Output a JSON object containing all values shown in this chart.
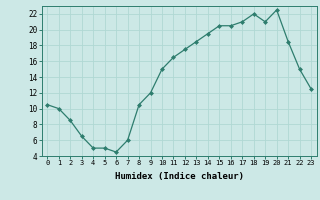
{
  "x": [
    0,
    1,
    2,
    3,
    4,
    5,
    6,
    7,
    8,
    9,
    10,
    11,
    12,
    13,
    14,
    15,
    16,
    17,
    18,
    19,
    20,
    21,
    22,
    23
  ],
  "y": [
    10.5,
    10.0,
    8.5,
    6.5,
    5.0,
    5.0,
    4.5,
    6.0,
    10.5,
    12.0,
    15.0,
    16.5,
    17.5,
    18.5,
    19.5,
    20.5,
    20.5,
    21.0,
    22.0,
    21.0,
    22.5,
    18.5,
    15.0,
    12.5
  ],
  "xlabel": "Humidex (Indice chaleur)",
  "ylim": [
    4,
    23
  ],
  "xlim": [
    -0.5,
    23.5
  ],
  "yticks": [
    4,
    6,
    8,
    10,
    12,
    14,
    16,
    18,
    20,
    22
  ],
  "xticks": [
    0,
    1,
    2,
    3,
    4,
    5,
    6,
    7,
    8,
    9,
    10,
    11,
    12,
    13,
    14,
    15,
    16,
    17,
    18,
    19,
    20,
    21,
    22,
    23
  ],
  "xtick_labels": [
    "0",
    "1",
    "2",
    "3",
    "4",
    "5",
    "6",
    "7",
    "8",
    "9",
    "10",
    "11",
    "12",
    "13",
    "14",
    "15",
    "16",
    "17",
    "18",
    "19",
    "20",
    "21",
    "22",
    "23"
  ],
  "line_color": "#2e7d6e",
  "marker_color": "#2e7d6e",
  "bg_color": "#cce8e6",
  "grid_color": "#b0d8d4",
  "axes_color": "#2e7d6e",
  "xlabel_fontsize": 6.5,
  "tick_fontsize_x": 5.0,
  "tick_fontsize_y": 5.5
}
